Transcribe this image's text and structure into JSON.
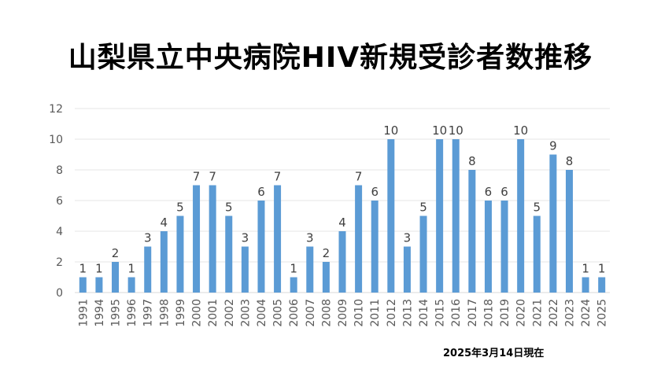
{
  "chart_data": {
    "type": "bar",
    "title": "山梨県立中央病院HIV新規受診者数推移",
    "note": "2025年3月14日現在",
    "categories": [
      "1991",
      "1994",
      "1995",
      "1996",
      "1997",
      "1998",
      "1999",
      "2000",
      "2001",
      "2002",
      "2003",
      "2004",
      "2005",
      "2006",
      "2007",
      "2008",
      "2009",
      "2010",
      "2011",
      "2012",
      "2013",
      "2014",
      "2015",
      "2016",
      "2017",
      "2018",
      "2019",
      "2020",
      "2021",
      "2022",
      "2023",
      "2024",
      "2025"
    ],
    "values": [
      1,
      1,
      2,
      1,
      3,
      4,
      5,
      7,
      7,
      5,
      3,
      6,
      7,
      1,
      3,
      2,
      4,
      7,
      6,
      10,
      3,
      5,
      10,
      10,
      8,
      6,
      6,
      10,
      5,
      9,
      8,
      1,
      1
    ],
    "ylim": [
      0,
      12
    ],
    "yticks": [
      0,
      2,
      4,
      6,
      8,
      10,
      12
    ],
    "grid": true,
    "data_labels": true,
    "bar_color": "#5b9bd5"
  }
}
